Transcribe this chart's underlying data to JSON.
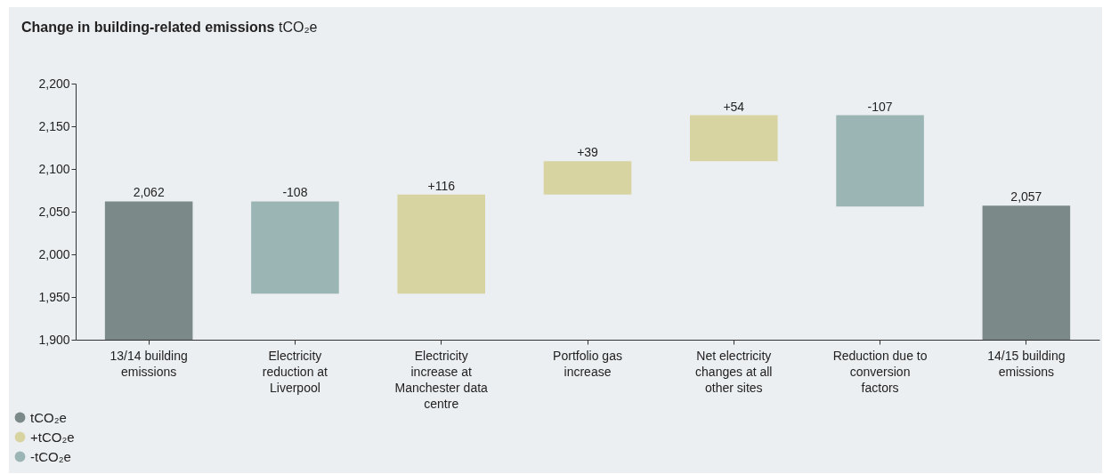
{
  "chart_data": {
    "type": "bar",
    "title": "Change in building-related emissions",
    "subtitle": "tCO₂e",
    "categories": [
      "13/14 building emissions",
      "Electricity reduction at Liverpool",
      "Electricity increase at Manchester data centre",
      "Portfolio gas increase",
      "Net electricity changes at all other sites",
      "Reduction due to conversion factors",
      "14/15 building emissions"
    ],
    "series": [
      {
        "name": "tCO₂e",
        "color": "#7b8a89",
        "values": [
          2062,
          null,
          null,
          null,
          null,
          null,
          2057
        ],
        "value_labels": [
          "2,062",
          null,
          null,
          null,
          null,
          null,
          "2,057"
        ]
      },
      {
        "name": "+tCO₂e",
        "color": "#d8d4a2",
        "base": [
          null,
          null,
          1954,
          2070,
          2109,
          null,
          null
        ],
        "values": [
          null,
          null,
          116,
          39,
          54,
          null,
          null
        ],
        "value_labels": [
          null,
          null,
          "+116",
          "+39",
          "+54",
          null,
          null
        ]
      },
      {
        "name": "-tCO₂e",
        "color": "#9bb5b5",
        "base": [
          null,
          2062,
          null,
          null,
          null,
          2163,
          null
        ],
        "values": [
          null,
          -108,
          null,
          null,
          null,
          -107,
          null
        ],
        "value_labels": [
          null,
          "-108",
          null,
          null,
          null,
          "-107",
          null
        ]
      }
    ],
    "ylim": [
      1900,
      2200
    ],
    "yticks": [
      {
        "value": 1900,
        "label": "1,900"
      },
      {
        "value": 1950,
        "label": "1,950"
      },
      {
        "value": 2000,
        "label": "2,000"
      },
      {
        "value": 2050,
        "label": "2,050"
      },
      {
        "value": 2100,
        "label": "2,100"
      },
      {
        "value": 2150,
        "label": "2,150"
      },
      {
        "value": 2200,
        "label": "2,200"
      }
    ],
    "grid": false,
    "legend": "bottom left"
  }
}
